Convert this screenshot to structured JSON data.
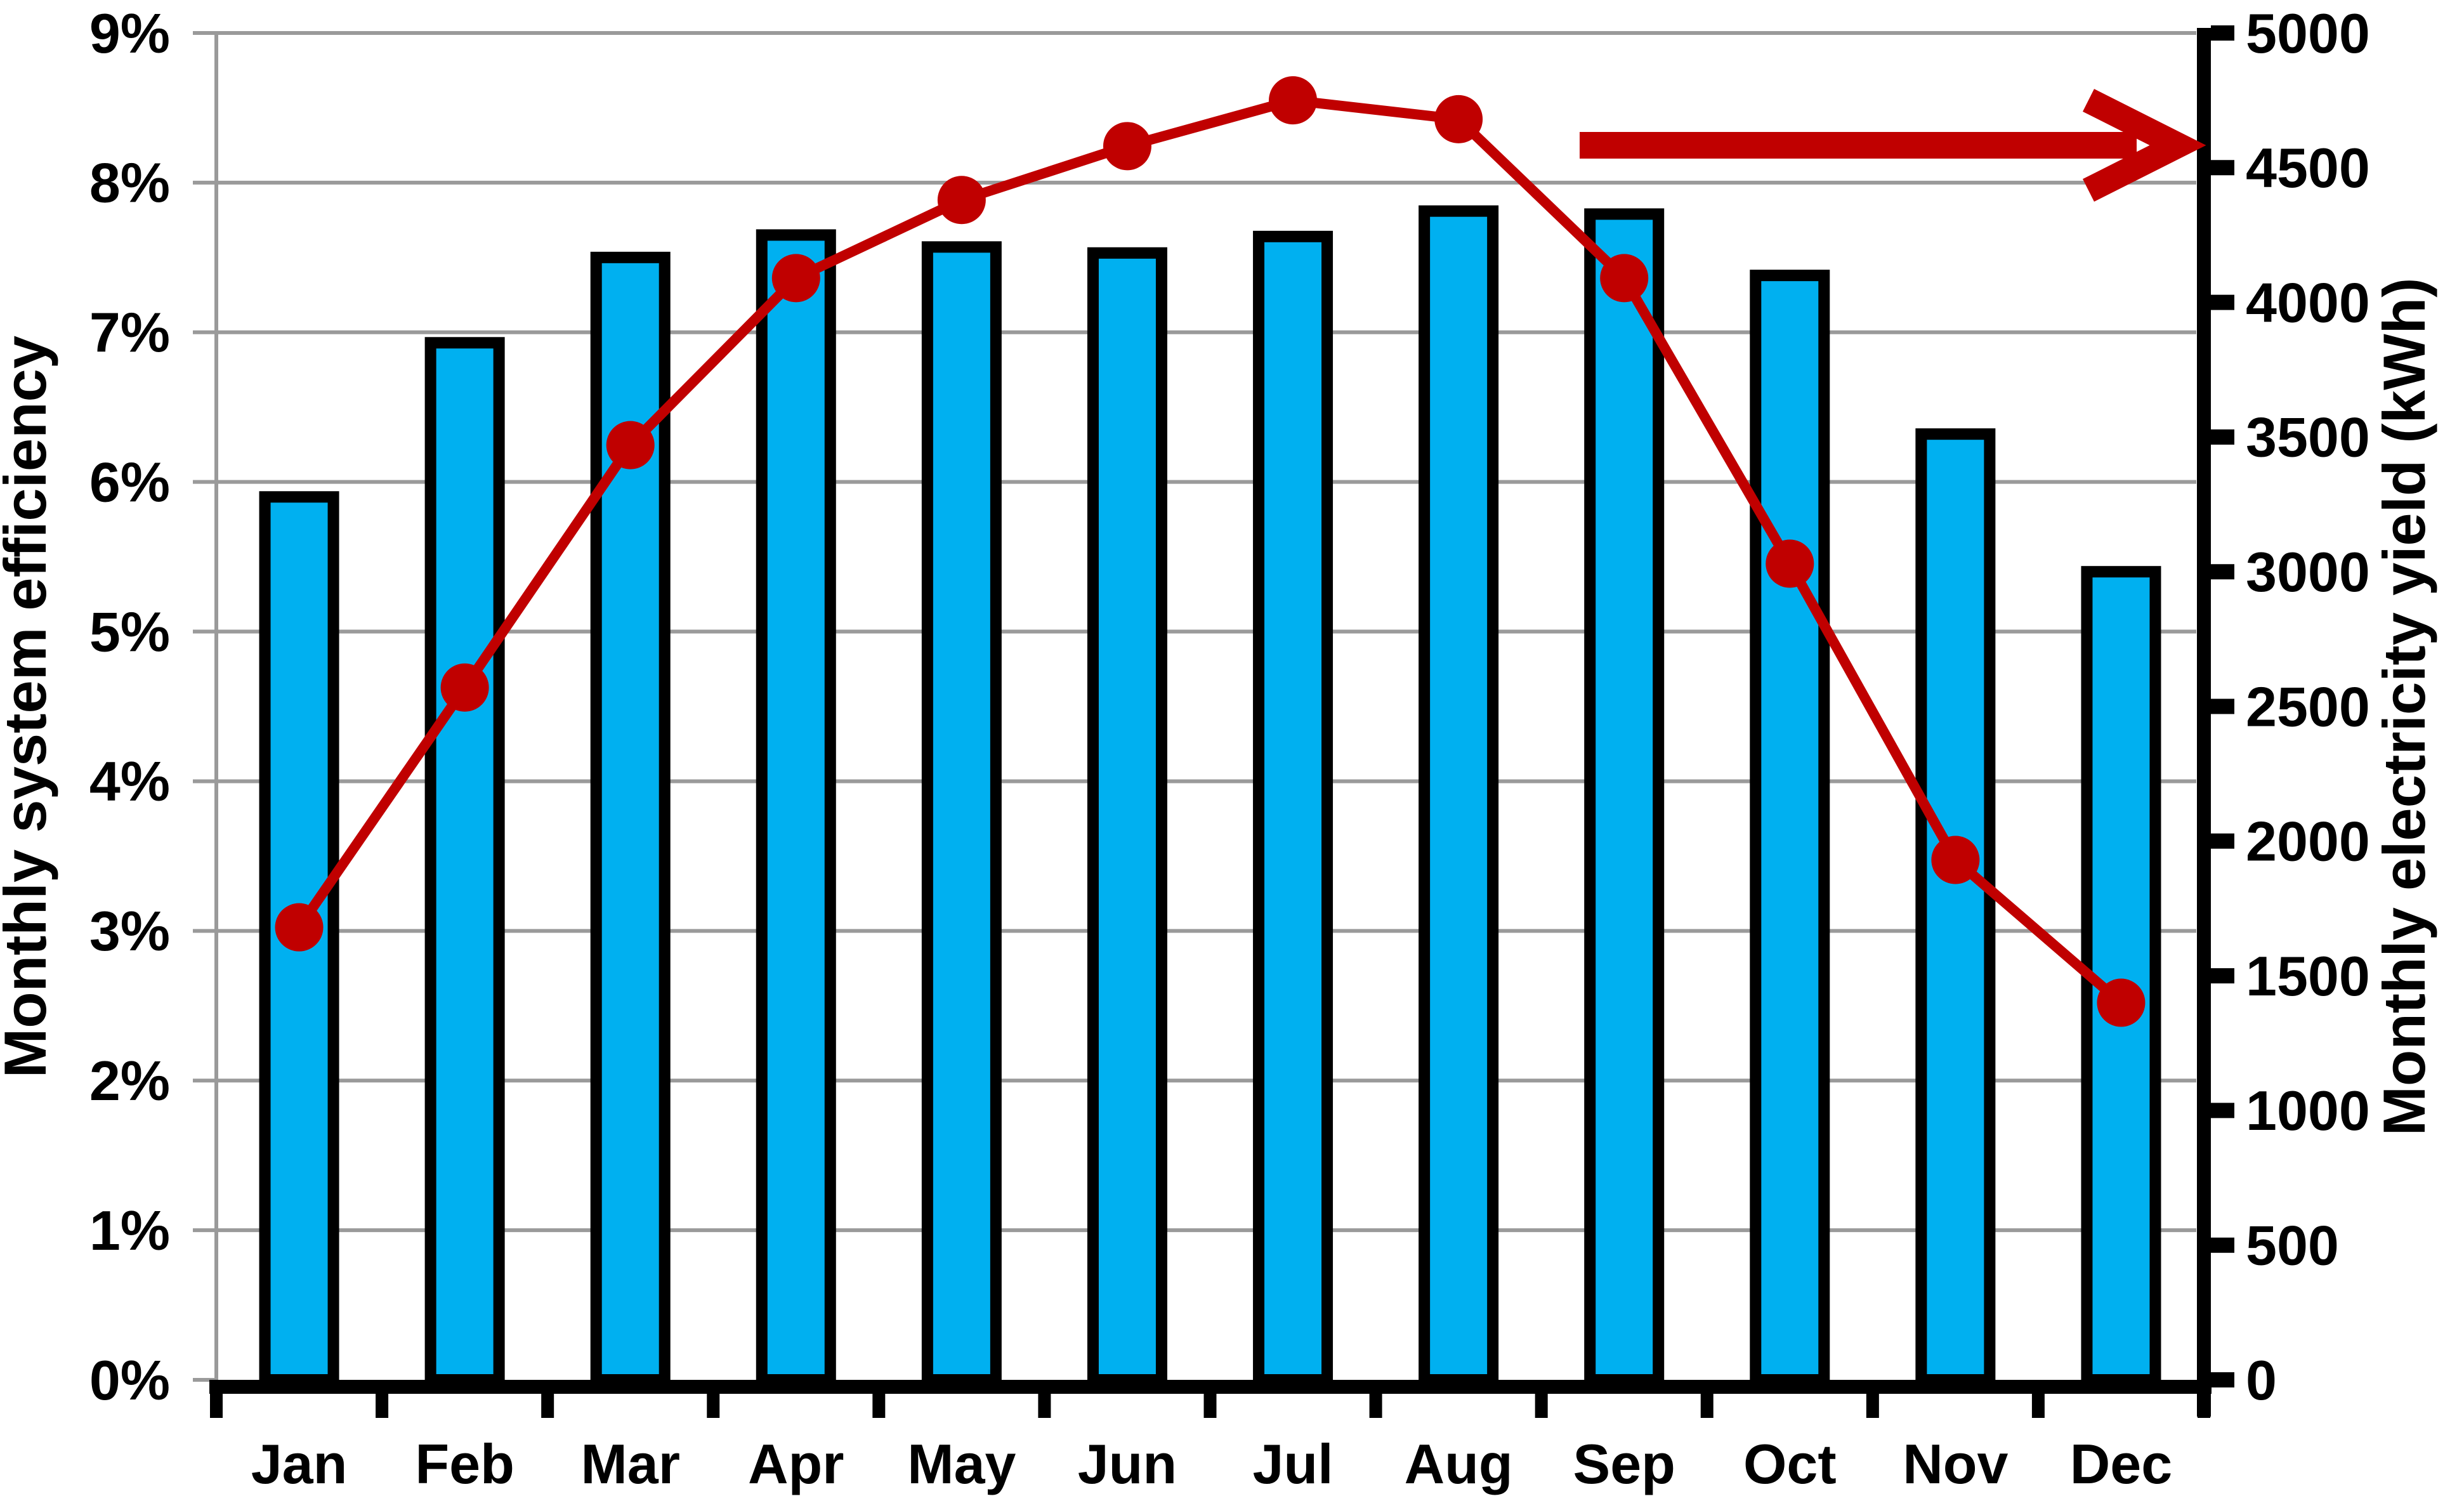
{
  "chart_data": {
    "type": "combo",
    "categories": [
      "Jan",
      "Feb",
      "Mar",
      "Apr",
      "May",
      "Jun",
      "Jul",
      "Aug",
      "Sep",
      "Oct",
      "Nov",
      "Dec"
    ],
    "series": [
      {
        "name": "Monthly system efficiency",
        "chart_type": "bar",
        "axis": "left",
        "unit": "%",
        "color": "#00B0F0",
        "border_color": "#000000",
        "values": [
          5.9,
          6.93,
          7.5,
          7.65,
          7.57,
          7.53,
          7.64,
          7.81,
          7.79,
          7.38,
          6.32,
          5.4
        ]
      },
      {
        "name": "Monthly electricity yield",
        "chart_type": "line",
        "axis": "right",
        "unit": "kWh",
        "color": "#C00000",
        "marker": "circle",
        "values": [
          1680,
          2570,
          3470,
          4090,
          4380,
          4580,
          4750,
          4680,
          4090,
          3030,
          1930,
          1400
        ]
      }
    ],
    "axes": {
      "left": {
        "title": "Monthly system efficiency",
        "min": 0,
        "max": 9,
        "step": 1,
        "tick_labels": [
          "0%",
          "1%",
          "2%",
          "3%",
          "4%",
          "5%",
          "6%",
          "7%",
          "8%",
          "9%"
        ]
      },
      "right": {
        "title": "Monthly electricity yield (kWh)",
        "min": 0,
        "max": 5000,
        "step": 500,
        "tick_labels": [
          "0",
          "500",
          "1000",
          "1500",
          "2000",
          "2500",
          "3000",
          "3500",
          "4000",
          "4500",
          "5000"
        ]
      },
      "x": {
        "tick_labels": [
          "Jan",
          "Feb",
          "Mar",
          "Apr",
          "May",
          "Jun",
          "Jul",
          "Aug",
          "Sep",
          "Oct",
          "Nov",
          "Dec"
        ]
      }
    },
    "grid": {
      "horizontal": true,
      "color": "#9A9A9A"
    },
    "legend": "none",
    "annotations": [
      {
        "type": "arrow",
        "direction": "right",
        "color": "#C00000"
      }
    ]
  }
}
